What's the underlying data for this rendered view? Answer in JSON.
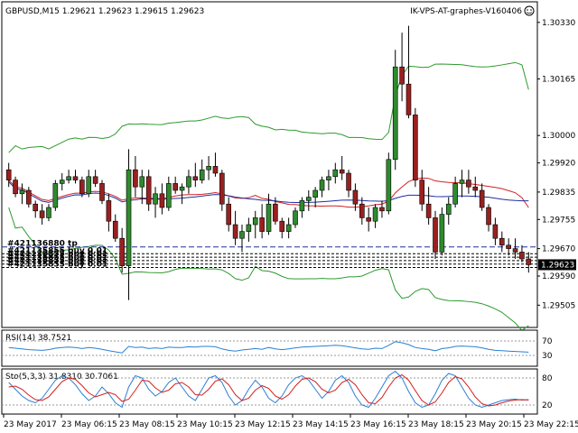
{
  "header": {
    "symbol_line": "GBPUSD,M15  1.29621 1.29623 1.29615 1.29623",
    "expert_name": "IK-VPS-AT-graphes-V160406"
  },
  "chart_data": [
    {
      "type": "candlestick",
      "title": "GBPUSD,M15",
      "ylim": [
        1.2944,
        1.3039
      ],
      "price_labels": [
        "1.30330",
        "1.30165",
        "1.30000",
        "1.29920",
        "1.29835",
        "1.29755",
        "1.29670",
        "1.29590",
        "1.29505"
      ],
      "current_price": "1.29623",
      "time_labels": [
        "23 May 2017",
        "23 May 06:15",
        "23 May 08:15",
        "23 May 10:15",
        "23 May 12:15",
        "23 May 14:15",
        "23 May 16:15",
        "23 May 18:15",
        "23 May 20:15",
        "23 May 22:15"
      ],
      "order_labels": [
        "#421136880 tp",
        "#421135855 buy 0.01",
        "#421135855 buy 0.01",
        "#421135855 buy 0.01",
        "#421135855 buy 0.01",
        "#421135855 buy 0.01"
      ],
      "order_levels": [
        1.29675,
        1.29655,
        1.29645,
        1.29635,
        1.29625,
        1.29615
      ],
      "candles": [
        [
          1.299,
          1.2992,
          1.2985,
          1.2987
        ],
        [
          1.2987,
          1.2988,
          1.2982,
          1.2983
        ],
        [
          1.2983,
          1.2986,
          1.298,
          1.2984
        ],
        [
          1.2984,
          1.2985,
          1.2979,
          1.298
        ],
        [
          1.298,
          1.2981,
          1.2976,
          1.2978
        ],
        [
          1.2978,
          1.298,
          1.2974,
          1.2976
        ],
        [
          1.2976,
          1.298,
          1.2975,
          1.2979
        ],
        [
          1.2979,
          1.2987,
          1.2978,
          1.2986
        ],
        [
          1.2986,
          1.2989,
          1.2984,
          1.2987
        ],
        [
          1.2987,
          1.299,
          1.2986,
          1.2988
        ],
        [
          1.2988,
          1.299,
          1.2986,
          1.2987
        ],
        [
          1.2987,
          1.2988,
          1.2982,
          1.2983
        ],
        [
          1.2983,
          1.299,
          1.2982,
          1.2988
        ],
        [
          1.2988,
          1.299,
          1.2985,
          1.2986
        ],
        [
          1.2986,
          1.2987,
          1.298,
          1.2981
        ],
        [
          1.2981,
          1.2983,
          1.2972,
          1.2975
        ],
        [
          1.2975,
          1.2977,
          1.2969,
          1.297
        ],
        [
          1.297,
          1.2973,
          1.296,
          1.2962
        ],
        [
          1.2962,
          1.2996,
          1.2952,
          1.299
        ],
        [
          1.299,
          1.2994,
          1.2982,
          1.2985
        ],
        [
          1.2985,
          1.299,
          1.298,
          1.2988
        ],
        [
          1.2988,
          1.299,
          1.2978,
          1.298
        ],
        [
          1.298,
          1.2985,
          1.2976,
          1.2983
        ],
        [
          1.2983,
          1.2986,
          1.2977,
          1.2979
        ],
        [
          1.2979,
          1.2988,
          1.2978,
          1.2986
        ],
        [
          1.2986,
          1.2988,
          1.2983,
          1.2984
        ],
        [
          1.2984,
          1.2986,
          1.298,
          1.2985
        ],
        [
          1.2985,
          1.299,
          1.2983,
          1.2988
        ],
        [
          1.2988,
          1.2992,
          1.2985,
          1.2987
        ],
        [
          1.2987,
          1.2993,
          1.2986,
          1.299
        ],
        [
          1.299,
          1.2994,
          1.2987,
          1.2991
        ],
        [
          1.2991,
          1.2995,
          1.2988,
          1.2989
        ],
        [
          1.2989,
          1.299,
          1.2978,
          1.298
        ],
        [
          1.298,
          1.2982,
          1.2972,
          1.2974
        ],
        [
          1.2974,
          1.2978,
          1.2968,
          1.297
        ],
        [
          1.297,
          1.2974,
          1.2966,
          1.2972
        ],
        [
          1.2972,
          1.2976,
          1.2969,
          1.2974
        ],
        [
          1.2974,
          1.2978,
          1.297,
          1.2976
        ],
        [
          1.2976,
          1.298,
          1.297,
          1.2972
        ],
        [
          1.2972,
          1.2983,
          1.2971,
          1.298
        ],
        [
          1.298,
          1.2982,
          1.2974,
          1.2975
        ],
        [
          1.2975,
          1.2976,
          1.297,
          1.2972
        ],
        [
          1.2972,
          1.2976,
          1.297,
          1.2974
        ],
        [
          1.2974,
          1.2979,
          1.2973,
          1.2978
        ],
        [
          1.2978,
          1.2982,
          1.2976,
          1.2981
        ],
        [
          1.2981,
          1.2984,
          1.2978,
          1.2982
        ],
        [
          1.2982,
          1.2985,
          1.2979,
          1.2984
        ],
        [
          1.2984,
          1.2988,
          1.2982,
          1.2987
        ],
        [
          1.2987,
          1.299,
          1.2984,
          1.2988
        ],
        [
          1.2988,
          1.2992,
          1.2986,
          1.299
        ],
        [
          1.299,
          1.2994,
          1.2987,
          1.2989
        ],
        [
          1.2989,
          1.299,
          1.2982,
          1.2984
        ],
        [
          1.2984,
          1.2986,
          1.2978,
          1.298
        ],
        [
          1.298,
          1.2982,
          1.2974,
          1.2976
        ],
        [
          1.2976,
          1.2979,
          1.2972,
          1.2975
        ],
        [
          1.2975,
          1.298,
          1.2973,
          1.2979
        ],
        [
          1.2979,
          1.2981,
          1.2976,
          1.2978
        ],
        [
          1.2978,
          1.2995,
          1.2977,
          1.2993
        ],
        [
          1.2993,
          1.3025,
          1.299,
          1.302
        ],
        [
          1.302,
          1.303,
          1.301,
          1.3015
        ],
        [
          1.3015,
          1.3032,
          1.3005,
          1.3006
        ],
        [
          1.3006,
          1.3008,
          1.2985,
          1.2987
        ],
        [
          1.2987,
          1.299,
          1.2978,
          1.298
        ],
        [
          1.298,
          1.2985,
          1.2974,
          1.2976
        ],
        [
          1.2976,
          1.2978,
          1.2964,
          1.2966
        ],
        [
          1.2966,
          1.2979,
          1.2965,
          1.2977
        ],
        [
          1.2977,
          1.2982,
          1.2974,
          1.298
        ],
        [
          1.298,
          1.2988,
          1.2979,
          1.2986
        ],
        [
          1.2986,
          1.299,
          1.2982,
          1.2987
        ],
        [
          1.2987,
          1.299,
          1.2983,
          1.2985
        ],
        [
          1.2985,
          1.2988,
          1.2982,
          1.2984
        ],
        [
          1.2984,
          1.2986,
          1.2978,
          1.2979
        ],
        [
          1.2979,
          1.298,
          1.2972,
          1.2974
        ],
        [
          1.2974,
          1.2976,
          1.2968,
          1.297
        ],
        [
          1.297,
          1.2972,
          1.2966,
          1.2968
        ],
        [
          1.2968,
          1.297,
          1.2965,
          1.2967
        ],
        [
          1.2967,
          1.297,
          1.2964,
          1.2966
        ],
        [
          1.2966,
          1.2968,
          1.2963,
          1.2964
        ],
        [
          1.2964,
          1.2966,
          1.296,
          1.29623
        ]
      ]
    },
    {
      "type": "line",
      "title": "RSI(14) 38.7521",
      "levels": [
        "70",
        "30"
      ],
      "ylim": [
        0,
        100
      ],
      "values": [
        52,
        50,
        48,
        46,
        45,
        44,
        46,
        50,
        52,
        53,
        52,
        49,
        52,
        50,
        47,
        43,
        40,
        37,
        55,
        52,
        53,
        49,
        51,
        49,
        53,
        52,
        52,
        54,
        53,
        55,
        55,
        54,
        48,
        44,
        42,
        45,
        47,
        49,
        47,
        52,
        48,
        46,
        48,
        51,
        53,
        54,
        55,
        56,
        57,
        58,
        57,
        54,
        51,
        48,
        47,
        50,
        49,
        58,
        68,
        65,
        60,
        52,
        49,
        47,
        43,
        49,
        51,
        55,
        56,
        55,
        54,
        51,
        47,
        44,
        43,
        42,
        41,
        40,
        39
      ]
    },
    {
      "type": "line",
      "title": "Sto(5,3,3) 31.8310 30.7061",
      "levels": [
        "80",
        "20"
      ],
      "ylim": [
        0,
        100
      ],
      "k": [
        70,
        55,
        40,
        30,
        25,
        35,
        55,
        75,
        85,
        80,
        65,
        45,
        30,
        40,
        60,
        45,
        25,
        15,
        60,
        85,
        80,
        55,
        40,
        50,
        70,
        80,
        60,
        40,
        30,
        55,
        80,
        85,
        70,
        40,
        20,
        30,
        55,
        75,
        60,
        35,
        25,
        40,
        65,
        80,
        85,
        75,
        55,
        35,
        50,
        75,
        85,
        70,
        40,
        20,
        15,
        35,
        60,
        85,
        95,
        80,
        50,
        25,
        15,
        20,
        45,
        75,
        90,
        85,
        60,
        35,
        20,
        15,
        20,
        25,
        30,
        32,
        33,
        31,
        32
      ],
      "d": [
        60,
        62,
        55,
        42,
        32,
        30,
        38,
        55,
        72,
        80,
        77,
        63,
        47,
        38,
        43,
        48,
        43,
        28,
        33,
        53,
        75,
        73,
        58,
        48,
        53,
        67,
        70,
        60,
        43,
        42,
        55,
        73,
        78,
        65,
        43,
        30,
        35,
        53,
        63,
        57,
        40,
        33,
        43,
        62,
        77,
        80,
        72,
        55,
        47,
        53,
        70,
        77,
        65,
        43,
        25,
        23,
        37,
        60,
        80,
        87,
        75,
        52,
        30,
        20,
        27,
        47,
        70,
        83,
        78,
        60,
        38,
        23,
        18,
        20,
        25,
        29,
        31,
        32,
        31
      ]
    }
  ]
}
